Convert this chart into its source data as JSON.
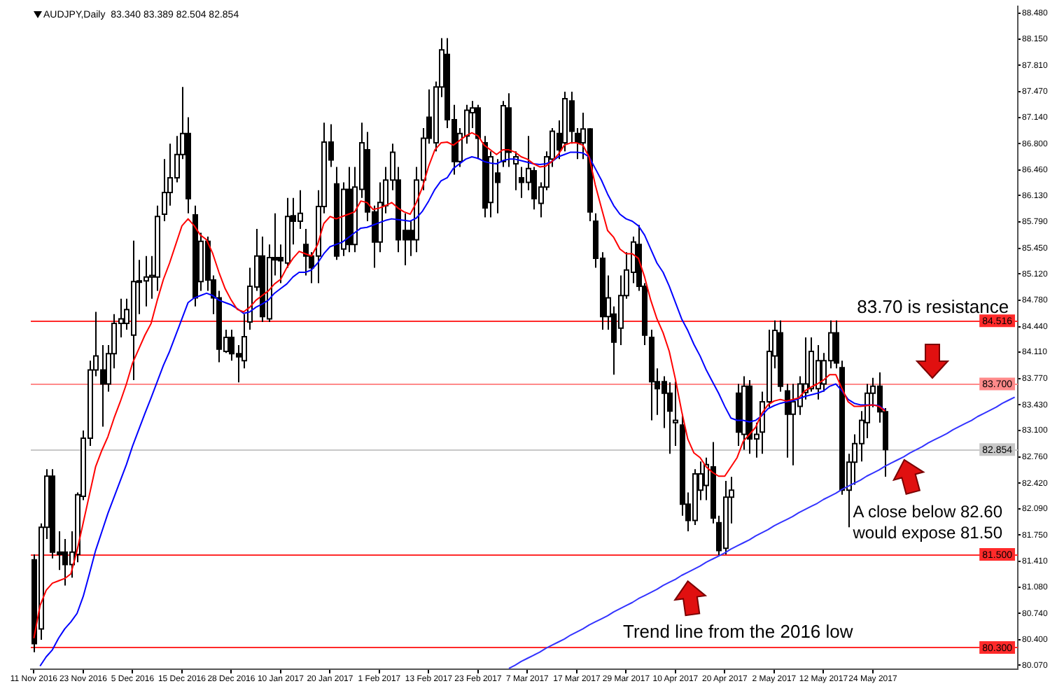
{
  "chart_data": {
    "type": "candlestick",
    "title": "AUDJPY,Daily  83.340 83.389 82.504 82.854",
    "categories": [
      "11 Nov 2016",
      null,
      null,
      null,
      null,
      null,
      null,
      null,
      "23 Nov 2016",
      null,
      null,
      null,
      null,
      null,
      null,
      null,
      "5 Dec 2016",
      null,
      null,
      null,
      null,
      null,
      null,
      null,
      "15 Dec 2016",
      null,
      null,
      null,
      null,
      null,
      null,
      null,
      "28 Dec 2016",
      null,
      null,
      null,
      null,
      null,
      null,
      null,
      "10 Jan 2017",
      null,
      null,
      null,
      null,
      null,
      null,
      null,
      "20 Jan 2017",
      null,
      null,
      null,
      null,
      null,
      null,
      null,
      "1 Feb 2017",
      null,
      null,
      null,
      null,
      null,
      null,
      null,
      "13 Feb 2017",
      null,
      null,
      null,
      null,
      null,
      null,
      null,
      "23 Feb 2017",
      null,
      null,
      null,
      null,
      null,
      null,
      null,
      "7 Mar 2017",
      null,
      null,
      null,
      null,
      null,
      null,
      null,
      "17 Mar 2017",
      null,
      null,
      null,
      null,
      null,
      null,
      null,
      "29 Mar 2017",
      null,
      null,
      null,
      null,
      null,
      null,
      null,
      "10 Apr 2017",
      null,
      null,
      null,
      null,
      null,
      null,
      null,
      "20 Apr 2017",
      null,
      null,
      null,
      null,
      null,
      null,
      null,
      "2 May 2017",
      null,
      null,
      null,
      null,
      null,
      null,
      null,
      "12 May 2017",
      null,
      null,
      null,
      null,
      null,
      null,
      null,
      "24 May 2017",
      null,
      null,
      null,
      null,
      null,
      null,
      null,
      null,
      null,
      null,
      null,
      null,
      null,
      null,
      null,
      null,
      null,
      null,
      null,
      null,
      null,
      null,
      null
    ],
    "series": [
      {
        "color": "#000000",
        "colors": [
          "#000000",
          "#ffffff",
          "#ffffff",
          "#000000",
          "#000000",
          "#000000",
          "#ffffff",
          "#ffffff",
          "#ffffff",
          "#ffffff",
          "#ffffff",
          "#000000",
          "#ffffff",
          "#ffffff",
          "#ffffff",
          "#ffffff",
          "#ffffff",
          "#ffffff",
          "#ffffff",
          "#ffffff",
          "#ffffff",
          "#ffffff",
          "#ffffff",
          "#ffffff",
          "#ffffff",
          "#000000",
          "#000000",
          "#ffffff",
          "#000000",
          "#000000",
          "#000000",
          "#ffffff",
          "#000000",
          "#000000",
          "#ffffff",
          "#ffffff",
          "#ffffff",
          "#000000",
          "#ffffff",
          "#000000",
          "#000000",
          "#ffffff",
          "#000000",
          "#ffffff",
          "#000000",
          "#000000",
          "#ffffff",
          "#ffffff",
          "#000000",
          "#000000",
          "#ffffff",
          "#000000",
          "#ffffff",
          "#ffffff",
          "#000000",
          "#000000",
          "#ffffff",
          "#ffffff",
          "#ffffff",
          "#000000",
          "#000000",
          "#000000",
          "#ffffff",
          "#ffffff",
          "#000000",
          "#ffffff",
          "#ffffff",
          "#000000",
          "#000000",
          "#ffffff",
          "#ffffff",
          "#ffffff",
          "#000000",
          "#000000",
          "#ffffff",
          "#000000",
          "#ffffff",
          "#000000",
          "#ffffff",
          "#000000",
          "#ffffff",
          "#000000",
          "#ffffff",
          "#ffffff",
          "#ffffff",
          "#000000",
          "#ffffff",
          "#000000",
          "#000000",
          "#ffffff",
          "#000000",
          "#000000",
          "#000000",
          "#ffffff",
          "#000000",
          "#ffffff",
          "#ffffff",
          "#ffffff",
          "#000000",
          "#000000",
          "#000000",
          "#000000",
          "#000000",
          "#000000",
          "#ffffff",
          "#000000",
          "#000000",
          "#ffffff",
          "#ffffff",
          "#ffffff",
          "#000000",
          "#000000",
          "#ffffff",
          "#ffffff",
          "#000000",
          "#ffffff",
          "#000000",
          "#ffffff",
          "#ffffff",
          "#ffffff",
          "#ffffff",
          "#000000",
          "#000000",
          "#ffffff",
          "#ffffff",
          "#ffffff",
          "#ffffff",
          "#ffffff",
          "#ffffff",
          "#ffffff",
          "#000000",
          "#000000",
          "#ffffff",
          "#ffffff",
          "#ffffff",
          "#ffffff",
          "#ffffff",
          "#000000",
          "#000000",
          null,
          null,
          null,
          null,
          null,
          null,
          null,
          null,
          null,
          null,
          null,
          null,
          null,
          null,
          null,
          null,
          null,
          null,
          null,
          null,
          null
        ],
        "ohlc": [
          [
            81.43,
            81.5,
            80.24,
            80.35
          ],
          [
            80.54,
            81.9,
            80.4,
            81.85
          ],
          [
            81.85,
            82.6,
            81.7,
            82.51
          ],
          [
            82.51,
            82.6,
            81.45,
            81.53
          ],
          [
            81.53,
            81.8,
            81.3,
            81.5
          ],
          [
            81.53,
            81.7,
            81.1,
            81.37
          ],
          [
            81.37,
            81.8,
            81.2,
            81.53
          ],
          [
            81.5,
            82.3,
            81.4,
            82.27
          ],
          [
            82.25,
            83.1,
            82.2,
            83.0
          ],
          [
            83.0,
            84.0,
            82.9,
            83.88
          ],
          [
            83.88,
            84.63,
            83.8,
            84.06
          ],
          [
            83.88,
            84.2,
            83.15,
            83.7
          ],
          [
            83.7,
            84.2,
            83.6,
            84.09
          ],
          [
            84.09,
            84.6,
            83.9,
            84.48
          ],
          [
            84.48,
            84.8,
            84.3,
            84.54
          ],
          [
            84.48,
            84.8,
            84.4,
            84.66
          ],
          [
            84.33,
            85.55,
            83.75,
            85.02
          ],
          [
            85.02,
            85.3,
            84.6,
            85.03
          ],
          [
            85.03,
            85.35,
            84.7,
            85.08
          ],
          [
            85.08,
            85.35,
            84.8,
            85.1
          ],
          [
            85.08,
            86.0,
            84.9,
            85.86
          ],
          [
            85.89,
            86.6,
            85.8,
            86.17
          ],
          [
            86.17,
            86.8,
            86.0,
            86.36
          ],
          [
            86.36,
            86.9,
            86.3,
            86.66
          ],
          [
            86.66,
            87.53,
            86.6,
            86.93
          ],
          [
            86.93,
            87.14,
            85.9,
            86.09
          ],
          [
            85.88,
            86.0,
            84.7,
            84.81
          ],
          [
            85.02,
            85.65,
            84.9,
            85.54
          ],
          [
            85.54,
            85.6,
            84.9,
            85.04
          ],
          [
            85.04,
            85.1,
            84.6,
            84.81
          ],
          [
            84.81,
            84.9,
            83.98,
            84.15
          ],
          [
            84.12,
            84.4,
            84.1,
            84.3
          ],
          [
            84.3,
            84.4,
            84.0,
            84.09
          ],
          [
            84.09,
            84.2,
            83.72,
            84.05
          ],
          [
            84.0,
            84.6,
            83.9,
            84.31
          ],
          [
            84.5,
            85.2,
            84.4,
            84.96
          ],
          [
            84.95,
            85.7,
            84.9,
            85.35
          ],
          [
            85.35,
            85.6,
            84.5,
            84.57
          ],
          [
            84.54,
            85.5,
            84.5,
            85.33
          ],
          [
            85.33,
            85.9,
            85.1,
            85.3
          ],
          [
            85.33,
            85.5,
            85.0,
            85.29
          ],
          [
            85.26,
            86.1,
            85.2,
            85.86
          ],
          [
            85.87,
            86.1,
            85.5,
            85.8
          ],
          [
            85.8,
            86.2,
            85.7,
            85.9
          ],
          [
            85.5,
            85.7,
            85.1,
            85.35
          ],
          [
            85.35,
            85.4,
            85.0,
            85.2
          ],
          [
            85.35,
            86.2,
            85.0,
            85.99
          ],
          [
            85.99,
            87.07,
            85.9,
            86.82
          ],
          [
            86.82,
            87.05,
            86.5,
            86.59
          ],
          [
            86.28,
            86.5,
            85.3,
            85.35
          ],
          [
            85.44,
            86.3,
            85.35,
            86.21
          ],
          [
            86.21,
            86.5,
            85.4,
            85.5
          ],
          [
            85.5,
            86.5,
            85.4,
            86.24
          ],
          [
            86.21,
            87.07,
            86.1,
            86.81
          ],
          [
            86.72,
            86.95,
            85.8,
            85.92
          ],
          [
            85.92,
            86.0,
            85.2,
            85.53
          ],
          [
            85.53,
            86.3,
            85.4,
            86.04
          ],
          [
            86.0,
            86.5,
            85.9,
            86.33
          ],
          [
            86.33,
            86.8,
            86.2,
            86.69
          ],
          [
            86.33,
            86.5,
            85.4,
            85.56
          ],
          [
            85.68,
            85.9,
            85.23,
            85.56
          ],
          [
            85.68,
            85.8,
            85.35,
            85.56
          ],
          [
            85.56,
            86.5,
            85.4,
            86.33
          ],
          [
            86.33,
            87.0,
            86.2,
            86.87
          ],
          [
            87.14,
            87.5,
            86.8,
            86.87
          ],
          [
            86.81,
            87.6,
            86.7,
            87.53
          ],
          [
            87.53,
            88.16,
            87.4,
            88.01
          ],
          [
            87.95,
            88.16,
            87.0,
            87.11
          ],
          [
            87.11,
            87.3,
            86.4,
            86.57
          ],
          [
            86.57,
            87.0,
            86.5,
            86.93
          ],
          [
            86.9,
            87.3,
            86.8,
            87.23
          ],
          [
            87.2,
            87.35,
            87.0,
            87.26
          ],
          [
            87.26,
            87.3,
            86.6,
            86.87
          ],
          [
            86.81,
            86.9,
            85.85,
            85.97
          ],
          [
            86.04,
            86.7,
            85.85,
            86.63
          ],
          [
            86.42,
            86.6,
            85.9,
            86.3
          ],
          [
            86.57,
            87.35,
            86.5,
            87.29
          ],
          [
            87.26,
            87.45,
            86.5,
            86.69
          ],
          [
            86.54,
            86.7,
            86.2,
            86.63
          ],
          [
            86.36,
            86.5,
            86.1,
            86.3
          ],
          [
            86.3,
            86.9,
            86.2,
            86.48
          ],
          [
            86.45,
            86.5,
            85.95,
            86.09
          ],
          [
            86.03,
            86.3,
            85.85,
            86.24
          ],
          [
            86.24,
            86.7,
            86.2,
            86.63
          ],
          [
            86.6,
            87.0,
            86.5,
            86.96
          ],
          [
            86.93,
            87.1,
            86.6,
            86.72
          ],
          [
            86.81,
            87.47,
            86.7,
            87.38
          ],
          [
            87.35,
            87.47,
            86.8,
            86.96
          ],
          [
            86.93,
            87.0,
            86.6,
            86.81
          ],
          [
            86.81,
            87.2,
            86.6,
            86.99
          ],
          [
            86.99,
            87.0,
            85.8,
            85.92
          ],
          [
            85.8,
            85.9,
            85.2,
            85.32
          ],
          [
            85.32,
            85.4,
            84.4,
            84.57
          ],
          [
            84.57,
            85.1,
            84.4,
            84.81
          ],
          [
            84.6,
            84.7,
            83.82,
            84.24
          ],
          [
            84.42,
            85.1,
            84.2,
            84.84
          ],
          [
            84.84,
            85.4,
            84.8,
            85.17
          ],
          [
            85.14,
            85.6,
            85.0,
            85.53
          ],
          [
            85.5,
            85.75,
            84.9,
            84.96
          ],
          [
            84.96,
            85.0,
            84.2,
            84.33
          ],
          [
            84.3,
            84.4,
            83.23,
            83.73
          ],
          [
            83.73,
            83.9,
            83.3,
            83.64
          ],
          [
            83.73,
            83.8,
            83.13,
            83.58
          ],
          [
            83.58,
            83.72,
            82.8,
            83.35
          ],
          [
            83.2,
            83.73,
            82.9,
            83.23
          ],
          [
            83.17,
            83.3,
            82.0,
            82.15
          ],
          [
            82.15,
            82.3,
            81.8,
            81.94
          ],
          [
            81.94,
            82.6,
            81.88,
            82.54
          ],
          [
            82.33,
            82.7,
            82.2,
            82.54
          ],
          [
            82.39,
            82.75,
            82.2,
            82.66
          ],
          [
            82.63,
            82.95,
            81.9,
            81.97
          ],
          [
            81.91,
            82.0,
            81.49,
            81.55
          ],
          [
            81.58,
            82.45,
            81.5,
            82.24
          ],
          [
            82.24,
            82.5,
            81.9,
            82.33
          ],
          [
            83.58,
            83.7,
            82.9,
            83.08
          ],
          [
            83.05,
            83.8,
            82.85,
            83.67
          ],
          [
            83.67,
            83.75,
            82.8,
            82.99
          ],
          [
            82.99,
            83.2,
            82.75,
            83.05
          ],
          [
            83.08,
            83.6,
            82.8,
            83.47
          ],
          [
            83.47,
            84.4,
            83.4,
            84.12
          ],
          [
            84.06,
            84.52,
            83.9,
            84.39
          ],
          [
            84.36,
            84.52,
            83.6,
            83.67
          ],
          [
            83.61,
            83.7,
            82.75,
            83.31
          ],
          [
            83.31,
            83.7,
            82.65,
            83.47
          ],
          [
            83.41,
            83.8,
            83.3,
            83.7
          ],
          [
            83.59,
            84.3,
            83.5,
            83.7
          ],
          [
            83.64,
            84.3,
            83.6,
            84.12
          ],
          [
            83.64,
            84.2,
            83.5,
            84.0
          ],
          [
            83.7,
            84.1,
            83.6,
            84.0
          ],
          [
            84.0,
            84.52,
            83.9,
            84.36
          ],
          [
            84.36,
            84.52,
            83.9,
            83.97
          ],
          [
            83.91,
            84.0,
            82.27,
            82.33
          ],
          [
            82.33,
            82.8,
            81.85,
            82.69
          ],
          [
            82.69,
            83.05,
            82.4,
            82.93
          ],
          [
            82.93,
            83.35,
            82.7,
            83.23
          ],
          [
            83.2,
            83.7,
            83.0,
            83.58
          ],
          [
            83.58,
            83.78,
            83.4,
            83.67
          ],
          [
            83.67,
            83.85,
            83.2,
            83.34
          ],
          [
            83.34,
            83.389,
            82.504,
            82.854
          ],
          null,
          null,
          null,
          null,
          null,
          null,
          null,
          null,
          null,
          null,
          null,
          null,
          null,
          null,
          null,
          null,
          null,
          null,
          null,
          null,
          null
        ]
      },
      {
        "type": "line",
        "color": "#ff0000",
        "values": [
          80.42,
          80.84,
          81.04,
          81.13,
          81.16,
          81.19,
          81.25,
          81.55,
          81.91,
          82.27,
          82.63,
          82.84,
          83.02,
          83.26,
          83.47,
          83.7,
          83.97,
          84.15,
          84.33,
          84.48,
          84.78,
          85.05,
          85.26,
          85.5,
          85.74,
          85.83,
          85.74,
          85.62,
          85.56,
          85.38,
          85.14,
          84.93,
          84.78,
          84.66,
          84.63,
          84.69,
          84.78,
          84.84,
          84.9,
          84.99,
          85.05,
          85.2,
          85.32,
          85.41,
          85.38,
          85.35,
          85.5,
          85.77,
          85.86,
          85.83,
          85.86,
          85.89,
          85.92,
          86.06,
          86.04,
          85.95,
          85.97,
          86.0,
          86.04,
          85.97,
          85.92,
          85.89,
          86.04,
          86.24,
          86.51,
          86.72,
          86.81,
          86.82,
          86.78,
          86.84,
          86.9,
          86.94,
          86.9,
          86.78,
          86.72,
          86.66,
          86.72,
          86.72,
          86.69,
          86.63,
          86.6,
          86.54,
          86.5,
          86.51,
          86.57,
          86.66,
          86.78,
          86.81,
          86.81,
          86.78,
          86.63,
          86.27,
          85.97,
          85.68,
          85.59,
          85.44,
          85.38,
          85.38,
          85.32,
          85.08,
          84.78,
          84.54,
          84.36,
          84.12,
          83.76,
          83.35,
          82.99,
          82.81,
          82.75,
          82.63,
          82.56,
          82.51,
          82.51,
          82.63,
          82.75,
          82.96,
          83.05,
          83.14,
          83.32,
          83.43,
          83.48,
          83.5,
          83.48,
          83.5,
          83.52,
          83.61,
          83.66,
          83.7,
          83.75,
          83.82,
          83.82,
          83.64,
          83.47,
          83.41,
          83.41,
          83.42,
          83.43,
          83.41,
          83.35,
          null,
          null,
          null,
          null,
          null,
          null,
          null,
          null,
          null,
          null,
          null,
          null,
          null,
          null,
          null,
          null,
          null,
          null,
          null,
          null,
          null
        ]
      },
      {
        "type": "line",
        "color": "#0000ff",
        "values": [
          null,
          80.06,
          80.18,
          80.27,
          80.42,
          80.54,
          80.63,
          80.74,
          80.96,
          81.25,
          81.55,
          81.79,
          82.03,
          82.24,
          82.45,
          82.66,
          82.9,
          83.11,
          83.32,
          83.52,
          83.73,
          83.94,
          84.12,
          84.33,
          84.54,
          84.75,
          84.81,
          84.84,
          84.87,
          84.84,
          84.78,
          84.75,
          84.72,
          84.67,
          84.61,
          84.63,
          84.69,
          84.73,
          84.78,
          84.87,
          84.93,
          84.99,
          85.08,
          85.14,
          85.14,
          85.17,
          85.26,
          85.38,
          85.47,
          85.5,
          85.53,
          85.59,
          85.65,
          85.71,
          85.72,
          85.75,
          85.78,
          85.81,
          85.83,
          85.82,
          85.81,
          85.8,
          85.84,
          85.93,
          86.06,
          86.21,
          86.32,
          86.36,
          86.48,
          86.54,
          86.6,
          86.63,
          86.61,
          86.57,
          86.55,
          86.54,
          86.58,
          86.6,
          86.6,
          86.58,
          86.56,
          86.54,
          86.53,
          86.54,
          86.57,
          86.63,
          86.66,
          86.69,
          86.69,
          86.68,
          86.63,
          86.48,
          86.33,
          86.15,
          86.0,
          85.89,
          85.83,
          85.8,
          85.74,
          85.62,
          85.44,
          85.26,
          85.14,
          84.96,
          84.75,
          84.54,
          84.39,
          84.21,
          84.06,
          83.88,
          83.73,
          83.58,
          83.41,
          83.26,
          83.23,
          83.23,
          83.21,
          83.23,
          83.29,
          83.38,
          83.42,
          83.45,
          83.47,
          83.48,
          83.51,
          83.54,
          83.56,
          83.58,
          83.61,
          83.67,
          83.7,
          83.61,
          83.5,
          83.45,
          83.43,
          83.43,
          83.43,
          83.42,
          83.36,
          null,
          null,
          null,
          null,
          null,
          null,
          null,
          null,
          null,
          null,
          null,
          null,
          null,
          null,
          null,
          null,
          null,
          null,
          null,
          null,
          null
        ]
      },
      {
        "type": "line",
        "color": "#3333ff",
        "values": [
          null,
          null,
          null,
          null,
          null,
          null,
          null,
          null,
          null,
          null,
          null,
          null,
          null,
          null,
          null,
          null,
          null,
          null,
          null,
          null,
          null,
          null,
          null,
          null,
          null,
          null,
          null,
          null,
          null,
          null,
          null,
          null,
          null,
          null,
          null,
          null,
          null,
          null,
          null,
          null,
          null,
          null,
          null,
          null,
          null,
          null,
          null,
          null,
          null,
          null,
          null,
          null,
          null,
          null,
          null,
          null,
          null,
          null,
          null,
          null,
          null,
          null,
          null,
          null,
          null,
          null,
          null,
          null,
          null,
          null,
          null,
          null,
          null,
          null,
          null,
          null,
          null,
          80.03,
          80.07,
          80.12,
          80.16,
          80.2,
          80.24,
          80.29,
          80.33,
          80.37,
          80.41,
          80.46,
          80.5,
          80.54,
          80.59,
          80.63,
          80.67,
          80.71,
          80.76,
          80.8,
          80.84,
          80.88,
          80.93,
          80.97,
          81.01,
          81.05,
          81.1,
          81.14,
          81.18,
          81.23,
          81.27,
          81.31,
          81.35,
          81.4,
          81.44,
          81.48,
          81.52,
          81.57,
          81.61,
          81.65,
          81.69,
          81.74,
          81.78,
          81.82,
          81.87,
          81.91,
          81.95,
          81.99,
          82.04,
          82.08,
          82.12,
          82.16,
          82.21,
          82.25,
          82.29,
          82.34,
          82.38,
          82.42,
          82.46,
          82.51,
          82.55,
          82.59,
          82.64,
          82.68,
          82.72,
          82.76,
          82.81,
          82.85,
          82.89,
          82.94,
          82.98,
          83.02,
          83.06,
          83.11,
          83.15,
          83.19,
          83.23,
          83.28,
          83.32,
          83.36,
          83.4,
          83.45,
          83.49,
          83.53
        ]
      }
    ],
    "ylim": [
      80.02,
      88.57
    ],
    "yticks": [
      {
        "value": 88.48,
        "label": "88.480"
      },
      {
        "value": 88.15,
        "label": "88.150"
      },
      {
        "value": 87.81,
        "label": "87.810"
      },
      {
        "value": 87.47,
        "label": "87.470"
      },
      {
        "value": 87.14,
        "label": "87.140"
      },
      {
        "value": 86.8,
        "label": "86.800"
      },
      {
        "value": 86.46,
        "label": "86.460"
      },
      {
        "value": 86.13,
        "label": "86.130"
      },
      {
        "value": 85.79,
        "label": "85.790"
      },
      {
        "value": 85.45,
        "label": "85.450"
      },
      {
        "value": 85.12,
        "label": "85.120"
      },
      {
        "value": 84.78,
        "label": "84.780"
      },
      {
        "value": 84.44,
        "label": "84.440"
      },
      {
        "value": 84.11,
        "label": "84.110"
      },
      {
        "value": 83.77,
        "label": "83.770"
      },
      {
        "value": 83.43,
        "label": "83.430"
      },
      {
        "value": 83.1,
        "label": "83.100"
      },
      {
        "value": 82.76,
        "label": "82.760"
      },
      {
        "value": 82.42,
        "label": "82.420"
      },
      {
        "value": 82.09,
        "label": "82.090"
      },
      {
        "value": 81.75,
        "label": "81.750"
      },
      {
        "value": 81.41,
        "label": "81.410"
      },
      {
        "value": 81.08,
        "label": "81.080"
      },
      {
        "value": 80.74,
        "label": "80.740"
      },
      {
        "value": 80.4,
        "label": "80.400"
      },
      {
        "value": 80.07,
        "label": "80.070"
      }
    ],
    "ref_lines": [
      {
        "axis": "y",
        "value": 84.516,
        "label": "84.516",
        "color": "#ff2a2a"
      },
      {
        "axis": "y",
        "value": 83.7,
        "label": "83.700",
        "color": "#ff8a8a"
      },
      {
        "axis": "y",
        "value": 82.854,
        "label": "82.854",
        "color": "#c8c8c8"
      },
      {
        "axis": "y",
        "value": 81.5,
        "label": "81.500",
        "color": "#ff2a2a"
      },
      {
        "axis": "y",
        "value": 80.3,
        "label": "80.300",
        "color": "#ff2a2a"
      }
    ],
    "annotations": [
      "83.70 is resistance",
      "A close below 82.60 would expose 81.50",
      "Trend line from the 2016 low"
    ],
    "grid": false,
    "legend": false,
    "marker": "none",
    "line_style": "solid"
  }
}
